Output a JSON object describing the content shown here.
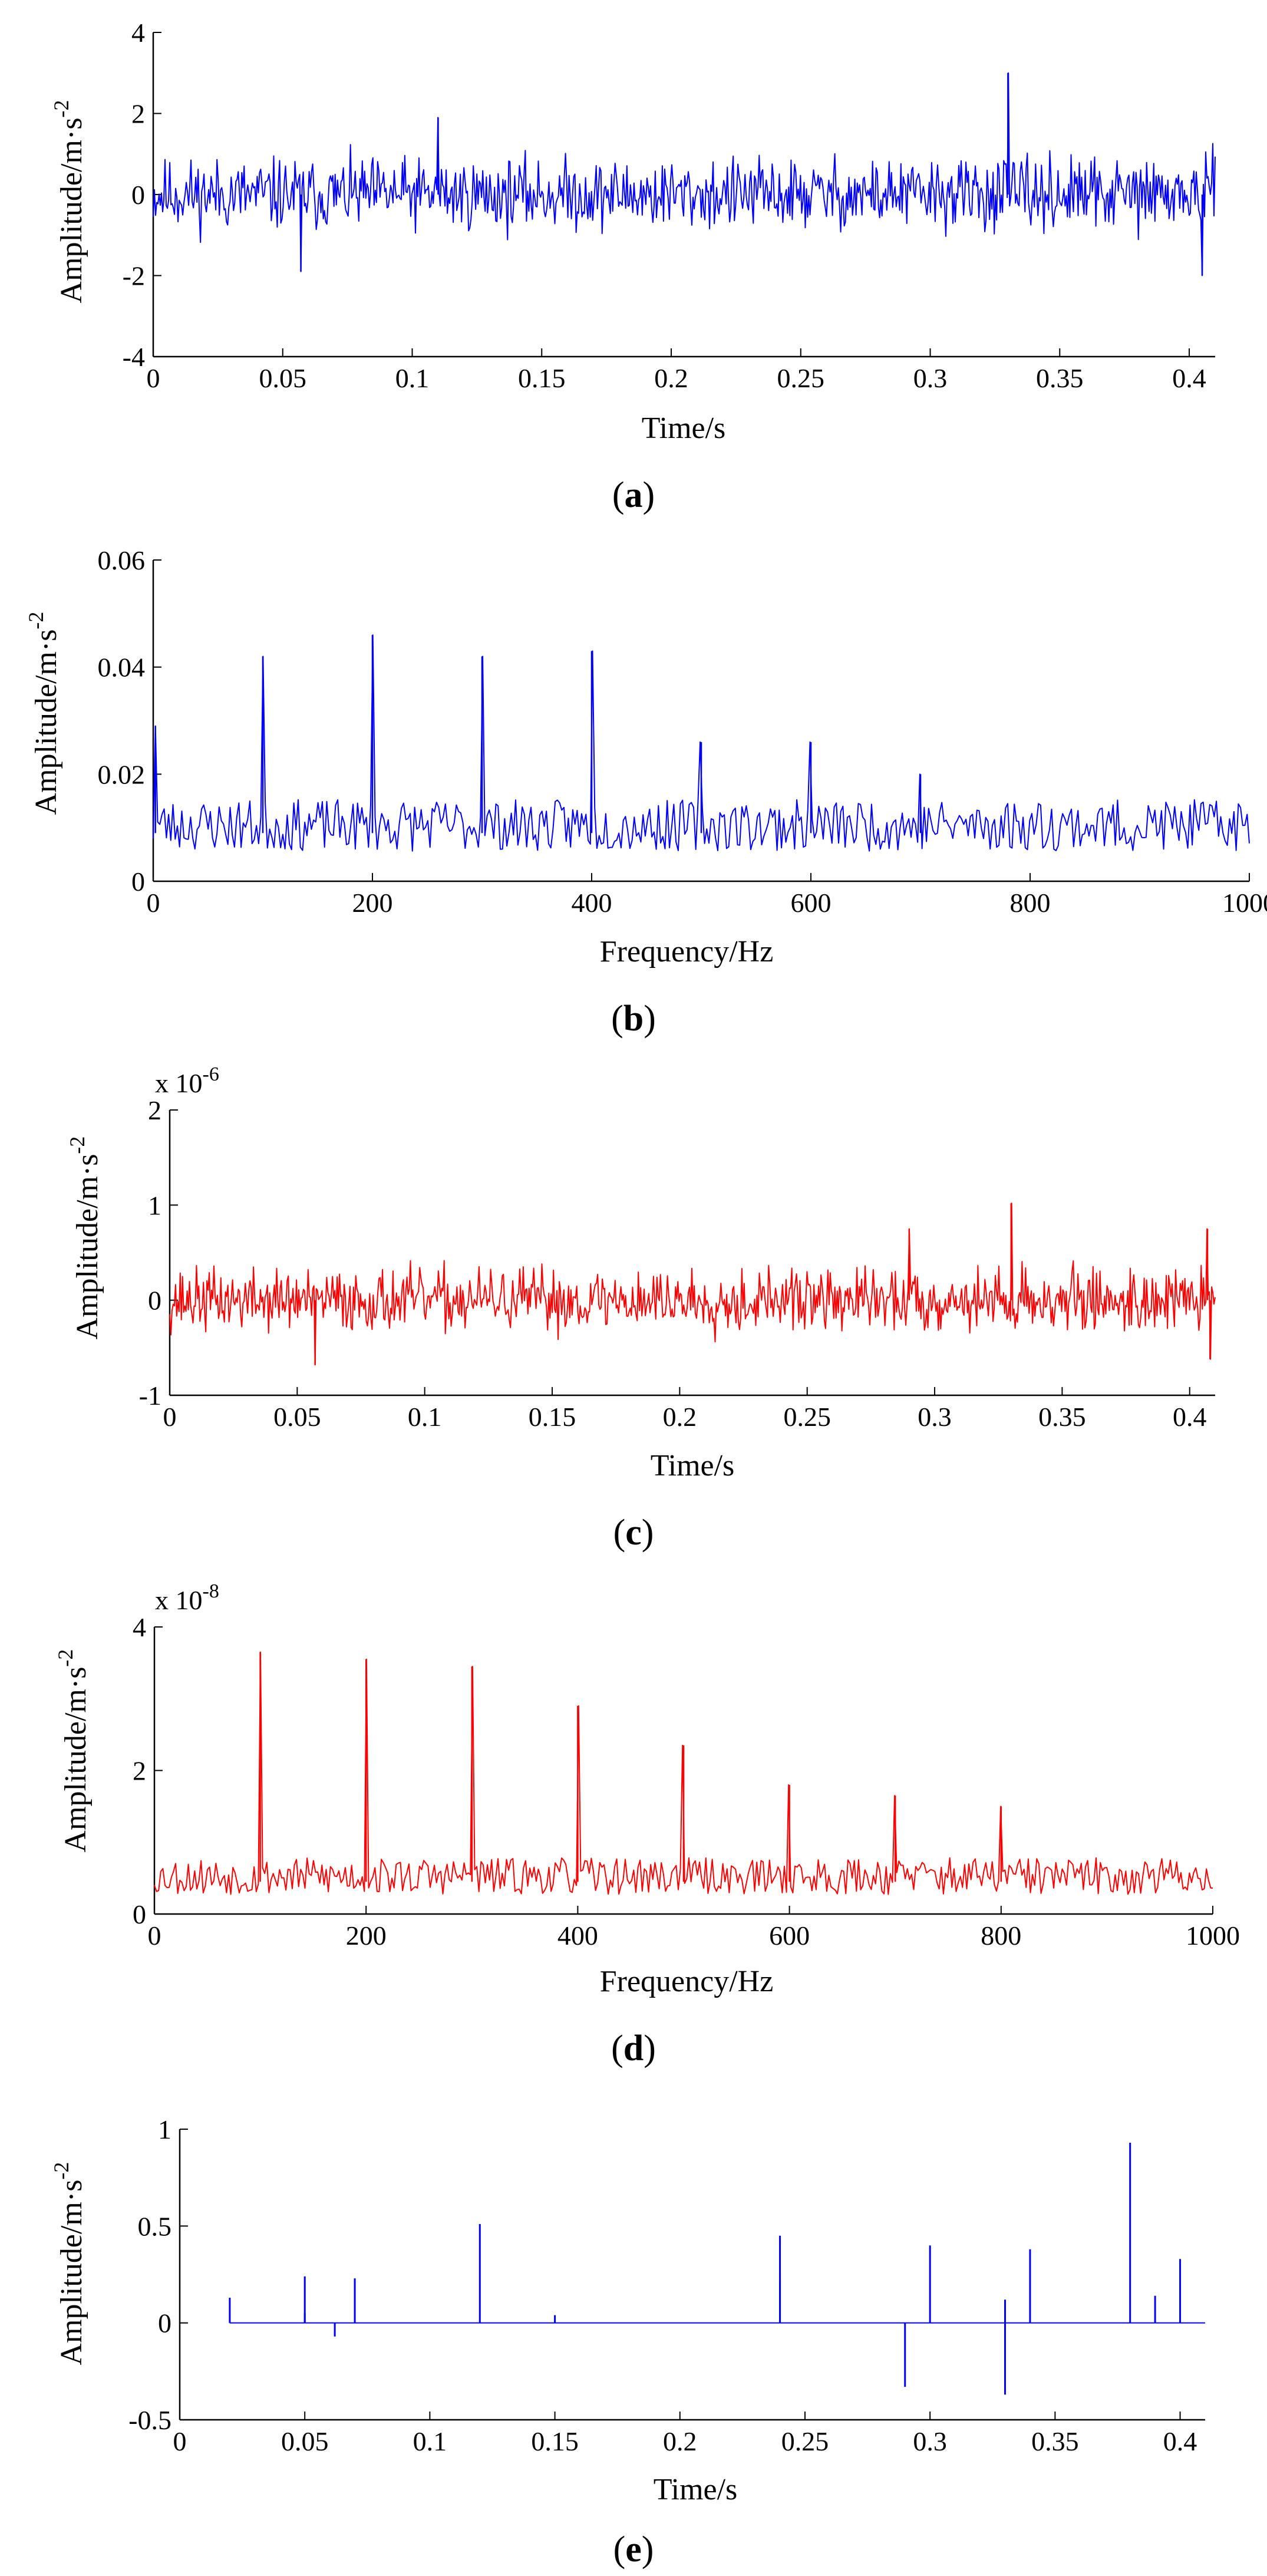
{
  "figure": {
    "panels": [
      {
        "id": "a",
        "caption_open": "(",
        "caption_letter": "a",
        "caption_close": ")"
      },
      {
        "id": "b",
        "caption_open": "(",
        "caption_letter": "b",
        "caption_close": ")"
      },
      {
        "id": "c",
        "caption_open": "(",
        "caption_letter": "c",
        "caption_close": ")"
      },
      {
        "id": "d",
        "caption_open": "(",
        "caption_letter": "d",
        "caption_close": ")"
      },
      {
        "id": "e",
        "caption_open": "(",
        "caption_letter": "e",
        "caption_close": ")"
      }
    ]
  },
  "chart_data": [
    {
      "id": "a",
      "type": "line",
      "signal": "noisy time-domain vibration signal",
      "color": "#0000ff",
      "xlabel": "Time/s",
      "ylabel_main": "Amplitude/m·s",
      "ylabel_exp": "-2",
      "xlim": [
        0,
        0.41
      ],
      "ylim": [
        -4,
        4
      ],
      "xticks": [
        0,
        0.05,
        0.1,
        0.15,
        0.2,
        0.25,
        0.3,
        0.35,
        0.4
      ],
      "xtick_labels": [
        "0",
        "0.05",
        "0.1",
        "0.15",
        "0.2",
        "0.25",
        "0.3",
        "0.35",
        "0.4"
      ],
      "yticks": [
        -4,
        -2,
        0,
        2,
        4
      ],
      "ytick_labels": [
        "-4",
        "-2",
        "0",
        "2",
        "4"
      ],
      "noise_amplitude": 0.75,
      "n_points": 900,
      "seed": 11,
      "spikes": [
        {
          "x": 0.33,
          "y": 3.0
        },
        {
          "x": 0.11,
          "y": 1.9
        },
        {
          "x": 0.057,
          "y": -1.9
        },
        {
          "x": 0.405,
          "y": -2.0
        }
      ]
    },
    {
      "id": "b",
      "type": "line",
      "signal": "amplitude spectrum of signal (a)",
      "color": "#0000ff",
      "xlabel": "Frequency/Hz",
      "ylabel_main": "Amplitude/m·s",
      "ylabel_exp": "-2",
      "xlim": [
        0,
        1000
      ],
      "ylim": [
        0,
        0.06
      ],
      "xticks": [
        0,
        200,
        400,
        600,
        800,
        1000
      ],
      "xtick_labels": [
        "0",
        "200",
        "400",
        "600",
        "800",
        "1000"
      ],
      "yticks": [
        0,
        0.02,
        0.04,
        0.06
      ],
      "ytick_labels": [
        "0",
        "0.02",
        "0.04",
        "0.06"
      ],
      "baseline": 0.009,
      "baseline_amplitude": 0.006,
      "n_points": 500,
      "seed": 23,
      "spikes": [
        {
          "x": 2,
          "y": 0.029
        },
        {
          "x": 100,
          "y": 0.042
        },
        {
          "x": 200,
          "y": 0.046
        },
        {
          "x": 300,
          "y": 0.042
        },
        {
          "x": 400,
          "y": 0.043
        },
        {
          "x": 500,
          "y": 0.026
        },
        {
          "x": 600,
          "y": 0.026
        },
        {
          "x": 700,
          "y": 0.02
        }
      ]
    },
    {
      "id": "c",
      "type": "line",
      "signal": "filtered time-domain signal",
      "color": "#ff0000",
      "xlabel": "Time/s",
      "ylabel_main": "Amplitude/m·s",
      "ylabel_exp": "-2",
      "scale_prefix": "x 10",
      "scale_exp": "-6",
      "xlim": [
        0,
        0.41
      ],
      "ylim": [
        -1,
        2
      ],
      "xticks": [
        0,
        0.05,
        0.1,
        0.15,
        0.2,
        0.25,
        0.3,
        0.35,
        0.4
      ],
      "xtick_labels": [
        "0",
        "0.05",
        "0.1",
        "0.15",
        "0.2",
        "0.25",
        "0.3",
        "0.35",
        "0.4"
      ],
      "yticks": [
        -1,
        0,
        1,
        2
      ],
      "ytick_labels": [
        "-1",
        "0",
        "1",
        "2"
      ],
      "noise_amplitude": 0.28,
      "n_points": 900,
      "seed": 37,
      "spikes": [
        {
          "x": 0.33,
          "y": 1.02
        },
        {
          "x": 0.29,
          "y": 0.75
        },
        {
          "x": 0.407,
          "y": 0.75
        },
        {
          "x": 0.057,
          "y": -0.68
        },
        {
          "x": 0.408,
          "y": -0.62
        }
      ]
    },
    {
      "id": "d",
      "type": "line",
      "signal": "amplitude spectrum of signal (c)",
      "color": "#ff0000",
      "xlabel": "Frequency/Hz",
      "ylabel_main": "Amplitude/m·s",
      "ylabel_exp": "-2",
      "scale_prefix": "x 10",
      "scale_exp": "-8",
      "xlim": [
        0,
        1000
      ],
      "ylim": [
        0,
        4
      ],
      "xticks": [
        0,
        200,
        400,
        600,
        800,
        1000
      ],
      "xtick_labels": [
        "0",
        "200",
        "400",
        "600",
        "800",
        "1000"
      ],
      "yticks": [
        0,
        2,
        4
      ],
      "ytick_labels": [
        "0",
        "2",
        "4"
      ],
      "baseline": 0.45,
      "baseline_amplitude": 0.32,
      "n_points": 500,
      "seed": 53,
      "spikes": [
        {
          "x": 100,
          "y": 3.65
        },
        {
          "x": 200,
          "y": 3.55
        },
        {
          "x": 300,
          "y": 3.45
        },
        {
          "x": 400,
          "y": 2.9
        },
        {
          "x": 500,
          "y": 2.35
        },
        {
          "x": 600,
          "y": 1.8
        },
        {
          "x": 700,
          "y": 1.65
        },
        {
          "x": 800,
          "y": 1.5
        }
      ]
    },
    {
      "id": "e",
      "type": "stem",
      "signal": "sparse impulse components",
      "color": "#0000ff",
      "xlabel": "Time/s",
      "ylabel_main": "Amplitude/m·s",
      "ylabel_exp": "-2",
      "xlim": [
        0,
        0.41
      ],
      "ylim": [
        -0.5,
        1
      ],
      "xticks": [
        0,
        0.05,
        0.1,
        0.15,
        0.2,
        0.25,
        0.3,
        0.35,
        0.4
      ],
      "xtick_labels": [
        "0",
        "0.05",
        "0.1",
        "0.15",
        "0.2",
        "0.25",
        "0.3",
        "0.35",
        "0.4"
      ],
      "yticks": [
        -0.5,
        0,
        0.5,
        1
      ],
      "ytick_labels": [
        "-0.5",
        "0",
        "0.5",
        "1"
      ],
      "baseline_extent": [
        0.02,
        0.41
      ],
      "stems": [
        {
          "x": 0.02,
          "y": 0.13
        },
        {
          "x": 0.05,
          "y": 0.24
        },
        {
          "x": 0.05,
          "y": 0.05
        },
        {
          "x": 0.062,
          "y": -0.07
        },
        {
          "x": 0.07,
          "y": 0.23
        },
        {
          "x": 0.12,
          "y": 0.51
        },
        {
          "x": 0.15,
          "y": 0.04
        },
        {
          "x": 0.24,
          "y": 0.45
        },
        {
          "x": 0.24,
          "y": 0.22
        },
        {
          "x": 0.29,
          "y": -0.33
        },
        {
          "x": 0.3,
          "y": 0.4
        },
        {
          "x": 0.33,
          "y": 0.12
        },
        {
          "x": 0.33,
          "y": -0.37
        },
        {
          "x": 0.34,
          "y": 0.38
        },
        {
          "x": 0.38,
          "y": 0.93
        },
        {
          "x": 0.39,
          "y": 0.14
        },
        {
          "x": 0.4,
          "y": 0.33
        }
      ]
    }
  ]
}
